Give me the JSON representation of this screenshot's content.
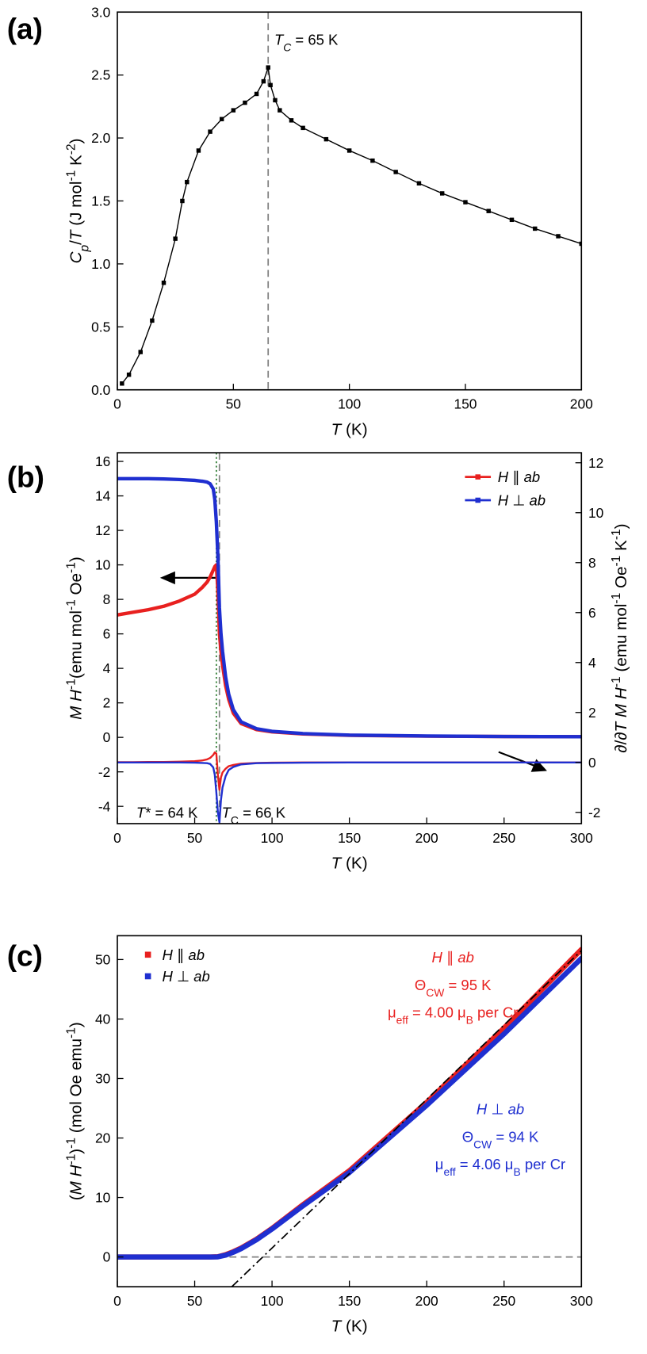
{
  "chart_data": [
    {
      "type": "line",
      "panel_label": "(a)",
      "x_label": [
        {
          "text": "T",
          "style": "it"
        },
        " (K)"
      ],
      "y_label": [
        {
          "text": "C",
          "style": "it"
        },
        {
          "text": "p",
          "style": "itsub"
        },
        "/",
        {
          "text": "T",
          "style": "it"
        },
        " (J mol",
        {
          "text": "-1",
          "style": "sup"
        },
        " K",
        {
          "text": "-2",
          "style": "sup"
        },
        ")"
      ],
      "x": [
        2,
        5,
        10,
        15,
        20,
        25,
        28,
        30,
        35,
        40,
        45,
        50,
        55,
        60,
        63,
        65,
        66,
        68,
        70,
        75,
        80,
        90,
        100,
        110,
        120,
        130,
        140,
        150,
        160,
        170,
        180,
        190,
        200
      ],
      "series": [
        {
          "color": "#000000",
          "marker": "square",
          "values": [
            0.05,
            0.12,
            0.3,
            0.55,
            0.85,
            1.2,
            1.5,
            1.65,
            1.9,
            2.05,
            2.15,
            2.22,
            2.28,
            2.35,
            2.45,
            2.56,
            2.42,
            2.3,
            2.22,
            2.14,
            2.08,
            1.99,
            1.9,
            1.82,
            1.73,
            1.64,
            1.56,
            1.49,
            1.42,
            1.35,
            1.28,
            1.22,
            1.16
          ]
        }
      ],
      "xlim": [
        0,
        200
      ],
      "xticks": [
        0,
        50,
        100,
        150,
        200
      ],
      "ylim": [
        0,
        3
      ],
      "yticks": [
        {
          "value": 0,
          "label": "0.0"
        },
        0.5,
        {
          "value": 1,
          "label": "1.0"
        },
        1.5,
        {
          "value": 2,
          "label": "2.0"
        },
        2.5,
        {
          "value": 3,
          "label": "3.0"
        }
      ],
      "vlines": [
        {
          "x": 65,
          "color": "#808080",
          "dash": "dashed"
        }
      ],
      "annotations": [
        {
          "text": [
            {
              "text": "T",
              "style": "it"
            },
            {
              "text": "C",
              "style": "itsub"
            },
            " = 65 K"
          ],
          "color": "#000000"
        }
      ]
    },
    {
      "type": "line",
      "panel_label": "(b)",
      "x_label": [
        {
          "text": "T",
          "style": "it"
        },
        " (K)"
      ],
      "y_label": [
        {
          "text": "M",
          "style": "it"
        },
        " ",
        {
          "text": "H",
          "style": "it"
        },
        {
          "text": "-1",
          "style": "sup"
        },
        "(emu mol",
        {
          "text": "-1",
          "style": "sup"
        },
        " Oe",
        {
          "text": "-1",
          "style": "sup"
        },
        ")"
      ],
      "y2_label": [
        "∂/∂",
        {
          "text": "T",
          "style": "it"
        },
        " ",
        {
          "text": "M",
          "style": "it"
        },
        " ",
        {
          "text": "H",
          "style": "it"
        },
        {
          "text": "-1",
          "style": "sup"
        },
        " (emu mol",
        {
          "text": "-1",
          "style": "sup"
        },
        " Oe",
        {
          "text": "-1",
          "style": "sup"
        },
        " K",
        {
          "text": "-1",
          "style": "sup"
        },
        ")"
      ],
      "x": [
        0,
        10,
        20,
        30,
        40,
        50,
        55,
        58,
        60,
        62,
        63,
        64,
        65,
        66,
        67,
        68,
        70,
        72,
        75,
        80,
        90,
        100,
        120,
        150,
        200,
        250,
        300
      ],
      "series": [
        {
          "name": "H ∥ ab",
          "color": "#e8201f",
          "values": [
            7.1,
            7.25,
            7.4,
            7.6,
            7.9,
            8.3,
            8.7,
            9.0,
            9.3,
            9.7,
            9.9,
            10.0,
            8.5,
            6.0,
            5.0,
            4.2,
            3.0,
            2.2,
            1.4,
            0.8,
            0.45,
            0.32,
            0.2,
            0.12,
            0.07,
            0.05,
            0.04
          ],
          "derivative": [
            0.01,
            0.01,
            0.02,
            0.02,
            0.03,
            0.05,
            0.08,
            0.12,
            0.18,
            0.3,
            0.4,
            0.35,
            -0.5,
            -1.1,
            -0.6,
            -0.4,
            -0.25,
            -0.15,
            -0.1,
            -0.05,
            -0.02,
            -0.01,
            0,
            0,
            0,
            0,
            0
          ]
        },
        {
          "name": "H ⊥ ab",
          "color": "#1f2fd0",
          "values": [
            15.0,
            15.0,
            15.0,
            14.98,
            14.95,
            14.9,
            14.85,
            14.8,
            14.7,
            14.4,
            13.8,
            12.5,
            10.5,
            7.5,
            6.0,
            5.0,
            3.5,
            2.5,
            1.6,
            0.9,
            0.5,
            0.35,
            0.22,
            0.13,
            0.08,
            0.05,
            0.04
          ],
          "derivative": [
            0,
            0,
            0,
            0,
            0,
            -0.01,
            -0.02,
            -0.03,
            -0.06,
            -0.2,
            -0.5,
            -1.2,
            -2.0,
            -2.4,
            -1.5,
            -1.0,
            -0.55,
            -0.3,
            -0.18,
            -0.08,
            -0.03,
            -0.02,
            -0.01,
            0,
            0,
            0,
            0
          ]
        }
      ],
      "xlim": [
        0,
        300
      ],
      "xticks": [
        0,
        50,
        100,
        150,
        200,
        250,
        300
      ],
      "ylim": [
        -5,
        16.5
      ],
      "yticks": [
        -4,
        -2,
        0,
        2,
        4,
        6,
        8,
        10,
        12,
        14,
        16
      ],
      "y2lim": [
        -2.45,
        12.4
      ],
      "y2ticks": [
        -2,
        0,
        2,
        4,
        6,
        8,
        10,
        12
      ],
      "legend": "upper right",
      "vlines": [
        {
          "x": 64,
          "color": "#2e7d32",
          "dash": "dotted"
        },
        {
          "x": 66,
          "color": "#808080",
          "dash": "dashed"
        }
      ],
      "annotations": [
        {
          "text": [
            {
              "text": "T",
              "style": "it"
            },
            "* = 64 K"
          ],
          "color": "#000000"
        },
        {
          "text": [
            {
              "text": "T",
              "style": "it"
            },
            {
              "text": "C",
              "style": "sub"
            },
            " = 66 K"
          ],
          "color": "#000000"
        }
      ]
    },
    {
      "type": "line",
      "panel_label": "(c)",
      "x_label": [
        {
          "text": "T",
          "style": "it"
        },
        " (K)"
      ],
      "y_label": [
        "(",
        {
          "text": "M",
          "style": "it"
        },
        " ",
        {
          "text": "H",
          "style": "it"
        },
        {
          "text": "-1",
          "style": "sup"
        },
        ")",
        {
          "text": "-1",
          "style": "sup"
        },
        " (mol Oe emu",
        {
          "text": "-1",
          "style": "sup"
        },
        ")"
      ],
      "x": [
        0,
        50,
        60,
        65,
        70,
        75,
        80,
        90,
        100,
        120,
        150,
        200,
        250,
        300
      ],
      "series": [
        {
          "name": "H ∥ ab",
          "color": "#e8201f",
          "values": [
            0,
            0,
            0,
            0.05,
            0.4,
            0.9,
            1.5,
            3,
            4.8,
            8.8,
            14.5,
            26,
            38.5,
            51.7
          ]
        },
        {
          "name": "H ⊥ ab",
          "color": "#1f2fd0",
          "values": [
            0,
            0,
            0,
            0.02,
            0.3,
            0.8,
            1.4,
            2.9,
            4.7,
            8.6,
            14.2,
            25.5,
            37.5,
            50.2
          ]
        }
      ],
      "xlim": [
        0,
        300
      ],
      "xticks": [
        0,
        50,
        100,
        150,
        200,
        250,
        300
      ],
      "ylim": [
        -5,
        54
      ],
      "yticks": [
        0,
        10,
        20,
        30,
        40,
        50
      ],
      "legend": "upper left",
      "hlines": [
        {
          "y": 0,
          "color": "#808080",
          "dash": "dashed"
        }
      ],
      "fit": {
        "x": [
          74,
          300
        ],
        "values": [
          -5,
          51.5
        ],
        "color": "#000000",
        "dash": "dashdot"
      },
      "annotations": [
        {
          "text": [
            {
              "text": "H",
              "style": "it"
            },
            " ∥ ",
            {
              "text": "ab",
              "style": "it"
            }
          ],
          "color": "#e8201f"
        },
        {
          "text": [
            "Θ",
            {
              "text": "CW",
              "style": "sub"
            },
            " = 95 K"
          ],
          "color": "#e8201f"
        },
        {
          "text": [
            "μ",
            {
              "text": "eff",
              "style": "sub"
            },
            " = 4.00 μ",
            {
              "text": "B",
              "style": "sub"
            },
            " per Cr"
          ],
          "color": "#e8201f"
        },
        {
          "text": [
            {
              "text": "H",
              "style": "it"
            },
            " ⊥ ",
            {
              "text": "ab",
              "style": "it"
            }
          ],
          "color": "#1f2fd0"
        },
        {
          "text": [
            "Θ",
            {
              "text": "CW",
              "style": "sub"
            },
            " = 94 K"
          ],
          "color": "#1f2fd0"
        },
        {
          "text": [
            "μ",
            {
              "text": "eff",
              "style": "sub"
            },
            " = 4.06 μ",
            {
              "text": "B",
              "style": "sub"
            },
            " per Cr"
          ],
          "color": "#1f2fd0"
        }
      ]
    }
  ]
}
